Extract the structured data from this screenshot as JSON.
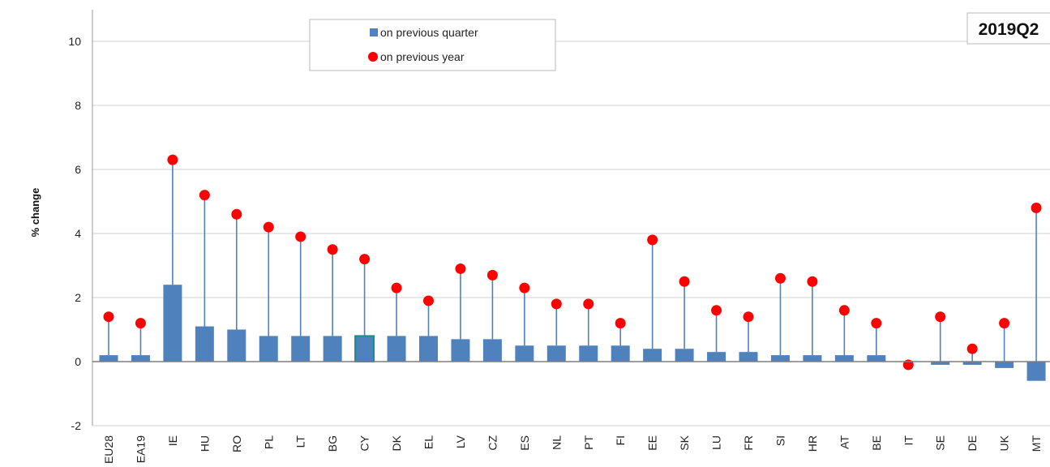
{
  "chart_data": {
    "type": "bar",
    "title": "",
    "period_label": "2019Q2",
    "xlabel": "",
    "ylabel": "% change",
    "ylim": [
      -2,
      10
    ],
    "yticks": [
      -2,
      0,
      2,
      4,
      6,
      8,
      10
    ],
    "grid": true,
    "legend_position": "top-center",
    "categories": [
      "EU28",
      "EA19",
      "IE",
      "HU",
      "RO",
      "PL",
      "LT",
      "BG",
      "CY",
      "DK",
      "EL",
      "LV",
      "CZ",
      "ES",
      "NL",
      "PT",
      "FI",
      "EE",
      "SK",
      "LU",
      "FR",
      "SI",
      "HR",
      "AT",
      "BE",
      "IT",
      "SE",
      "DE",
      "UK",
      "MT"
    ],
    "series": [
      {
        "name": "on previous quarter",
        "kind": "bar",
        "color": "#4f81bd",
        "values": [
          0.2,
          0.2,
          2.4,
          1.1,
          1.0,
          0.8,
          0.8,
          0.8,
          0.8,
          0.8,
          0.8,
          0.7,
          0.7,
          0.5,
          0.5,
          0.5,
          0.5,
          0.4,
          0.4,
          0.3,
          0.3,
          0.2,
          0.2,
          0.2,
          0.2,
          0.0,
          -0.1,
          -0.1,
          -0.2,
          -0.6
        ]
      },
      {
        "name": "on previous year",
        "kind": "dot",
        "color": "#ff0000",
        "values": [
          1.4,
          1.2,
          6.3,
          5.2,
          4.6,
          4.2,
          3.9,
          3.5,
          3.2,
          2.3,
          1.9,
          2.9,
          2.7,
          2.3,
          1.8,
          1.8,
          1.2,
          3.8,
          2.5,
          1.6,
          1.4,
          2.6,
          2.5,
          1.6,
          1.2,
          -0.1,
          1.4,
          0.4,
          1.2,
          4.8
        ]
      }
    ]
  }
}
